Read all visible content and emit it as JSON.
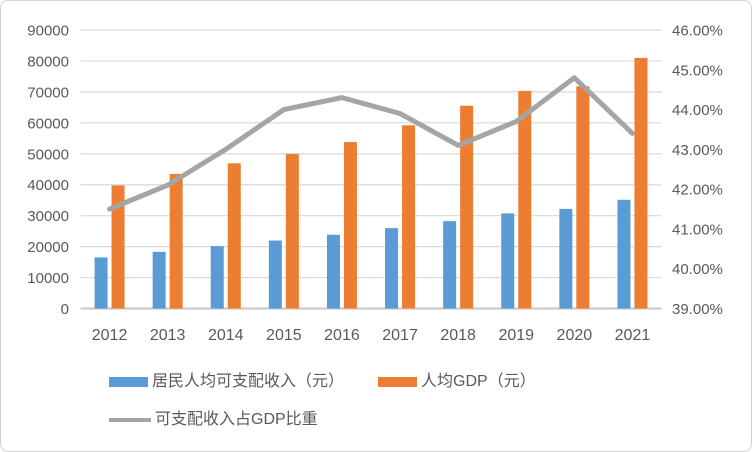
{
  "chart_data": {
    "type": "combo",
    "categories": [
      "2012",
      "2013",
      "2014",
      "2015",
      "2016",
      "2017",
      "2018",
      "2019",
      "2020",
      "2021"
    ],
    "series": [
      {
        "name": "居民人均可支配收入（元）",
        "type": "bar",
        "axis": "left",
        "color": "#5B9BD5",
        "values": [
          16510,
          18311,
          20167,
          21966,
          23821,
          25974,
          28228,
          30733,
          32189,
          35128
        ]
      },
      {
        "name": "人均GDP（元）",
        "type": "bar",
        "axis": "left",
        "color": "#ED7D31",
        "values": [
          39771,
          43497,
          46912,
          49922,
          53783,
          59201,
          65534,
          70328,
          71828,
          80976
        ]
      },
      {
        "name": "可支配收入占GDP比重",
        "type": "line",
        "axis": "right",
        "color": "#A5A5A5",
        "values": [
          41.5,
          42.1,
          43.0,
          44.0,
          44.3,
          43.9,
          43.1,
          43.7,
          44.8,
          43.4
        ]
      }
    ],
    "left_axis": {
      "min": 0,
      "max": 90000,
      "step": 10000,
      "tick_labels": [
        "0",
        "10000",
        "20000",
        "30000",
        "40000",
        "50000",
        "60000",
        "70000",
        "80000",
        "90000"
      ]
    },
    "right_axis": {
      "min": 39,
      "max": 46,
      "step": 1,
      "tick_labels": [
        "39.00%",
        "40.00%",
        "41.00%",
        "42.00%",
        "43.00%",
        "44.00%",
        "45.00%",
        "46.00%"
      ]
    },
    "grid": true,
    "legend_position": "bottom-left",
    "colors": {
      "gridline": "#D9D9D9",
      "axis_line": "#C6C6C6",
      "tick_text": "#595959"
    }
  }
}
